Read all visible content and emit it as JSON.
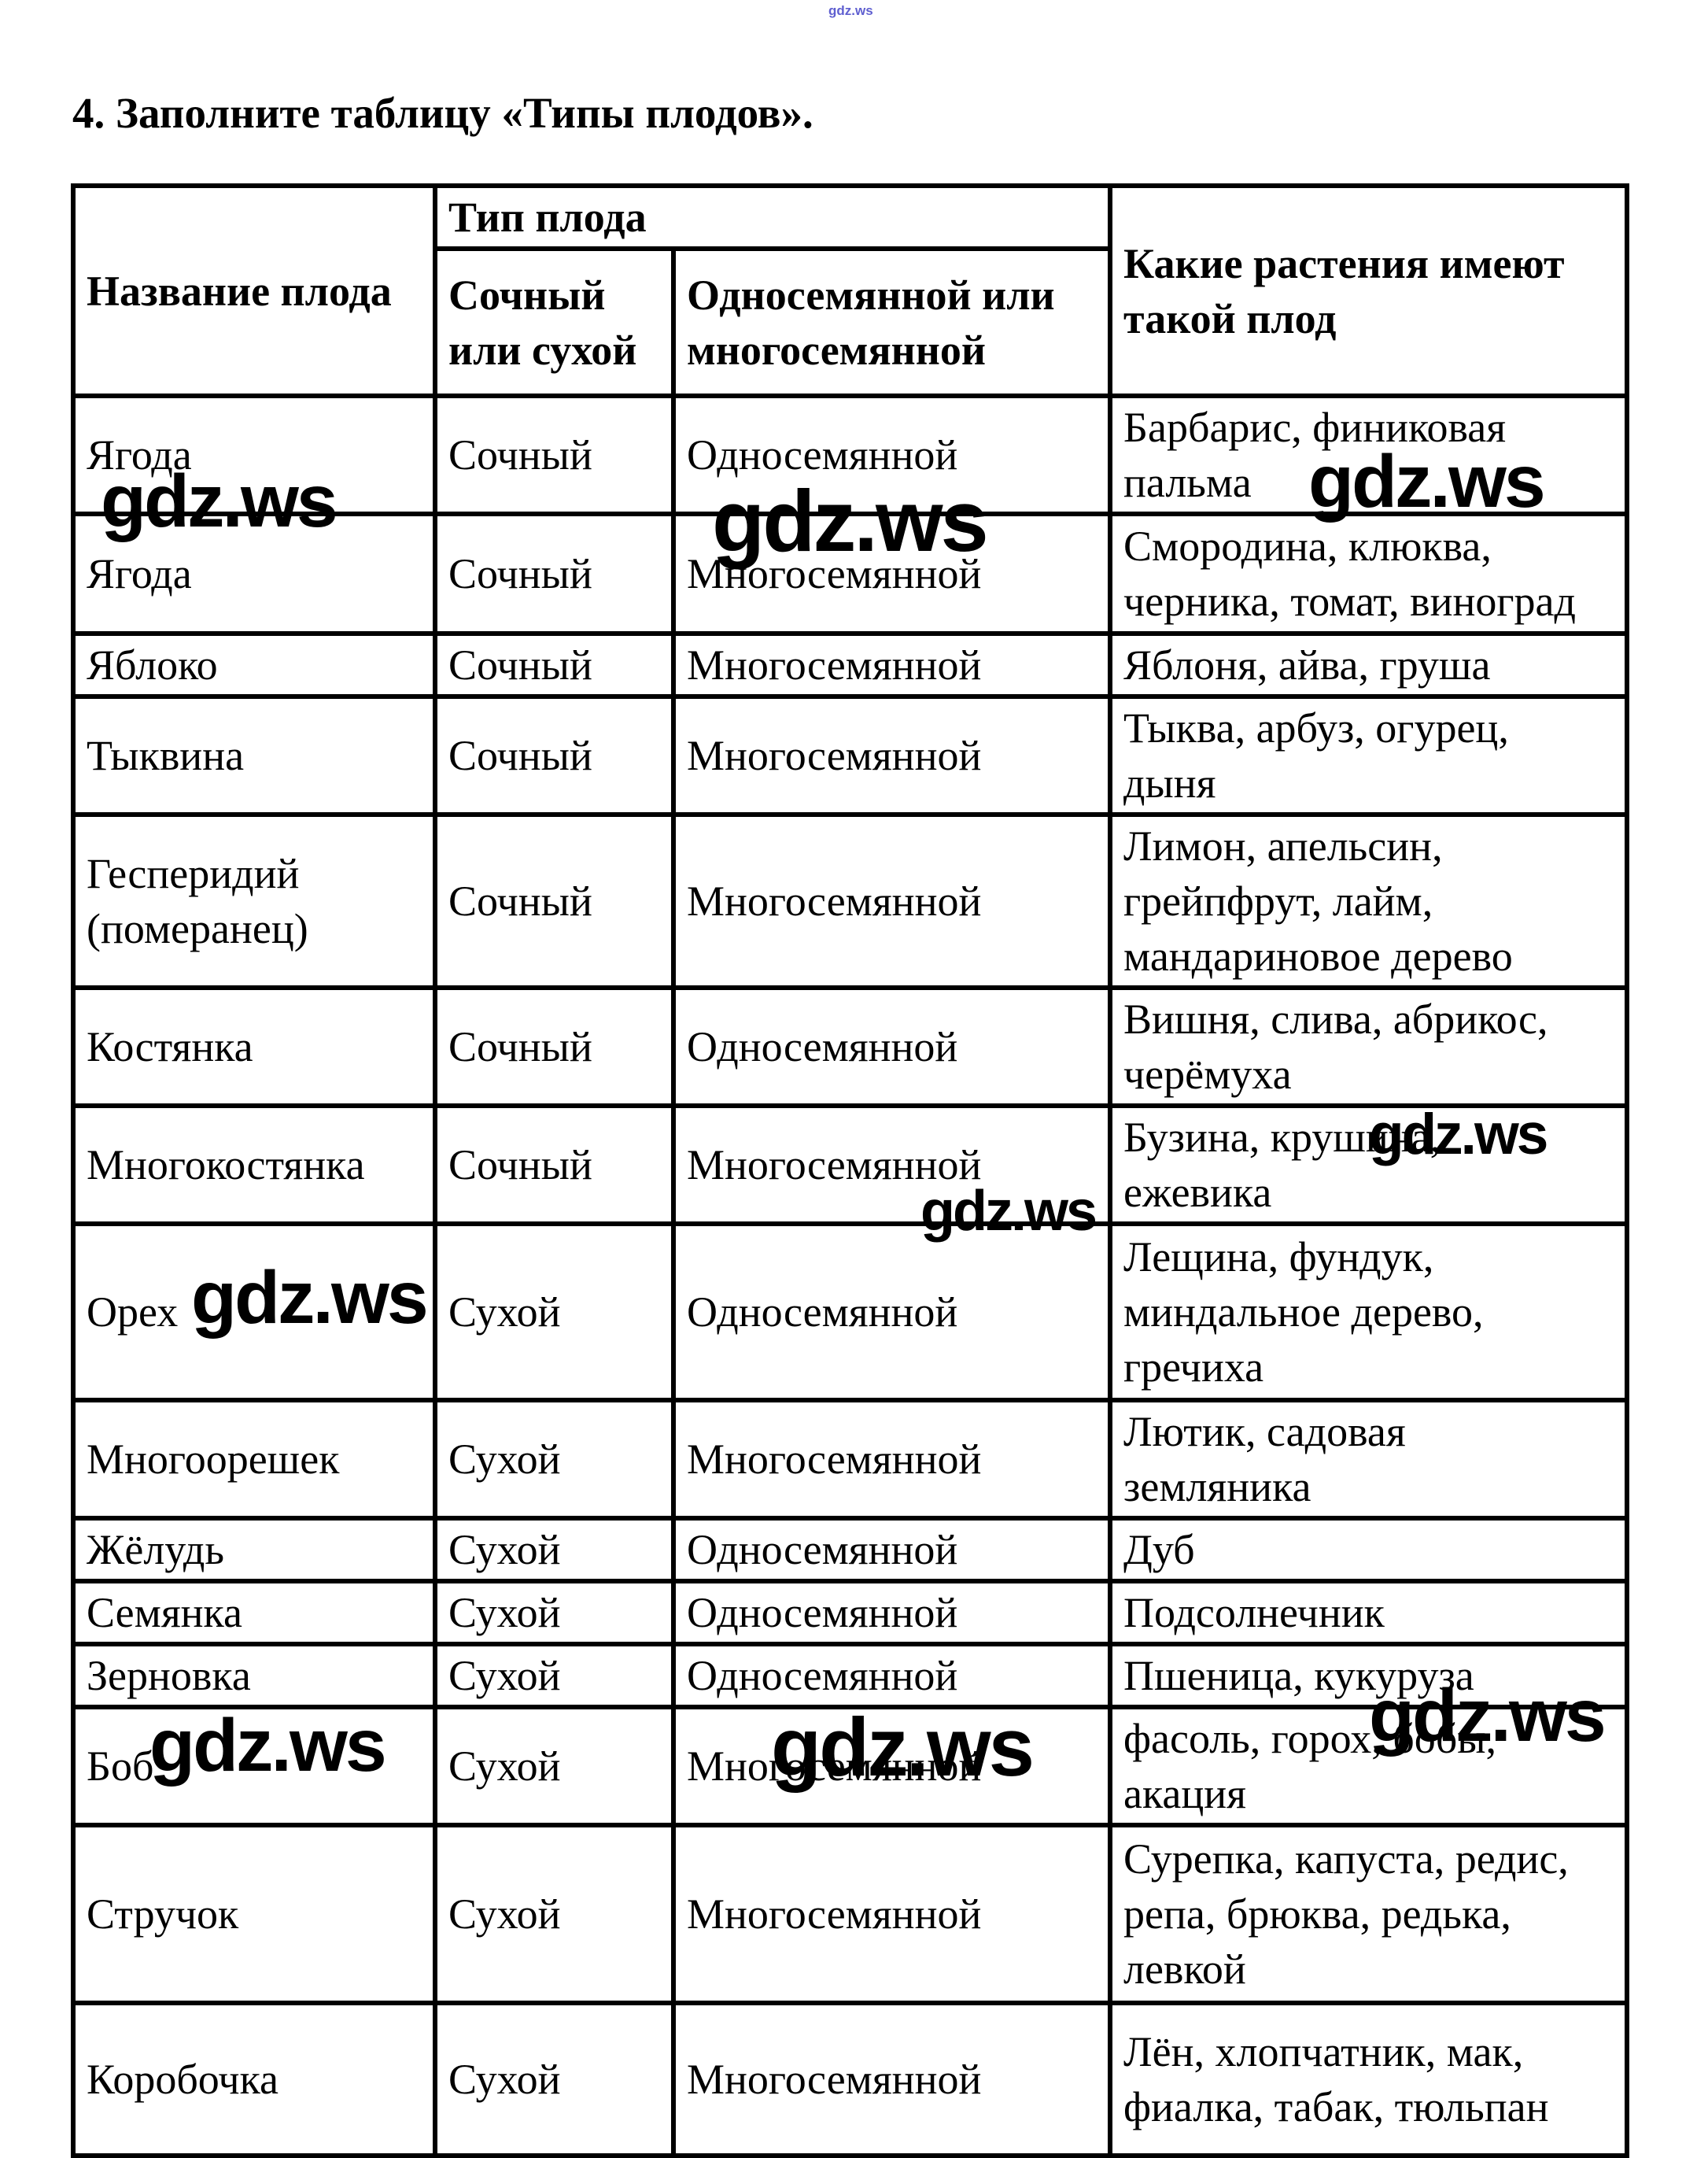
{
  "page": {
    "watermark_small": "gdz.ws",
    "watermark_large": "gdz.ws",
    "title": "4. Заполните таблицу «Типы плодов»."
  },
  "table": {
    "headers": {
      "col_name": "Название плода",
      "col_type_group": "Тип плода",
      "col_juicy": "Сочный\nили сухой",
      "col_seed": "Односемянной или\nмногосемянной",
      "col_plants": "Какие растения имеют\nтакой плод"
    },
    "rows": [
      {
        "name": "Ягода",
        "juicy": "Сочный",
        "seed": "Односемянной",
        "plants": "Барбарис, финиковая\nпальма"
      },
      {
        "name": "Ягода",
        "juicy": "Сочный",
        "seed": "Многосемянной",
        "plants": "Смородина, клюква,\nчерника, томат, виноград"
      },
      {
        "name": "Яблоко",
        "juicy": "Сочный",
        "seed": "Многосемянной",
        "plants": "Яблоня, айва, груша"
      },
      {
        "name": "Тыквина",
        "juicy": "Сочный",
        "seed": "Многосемянной",
        "plants": "Тыква, арбуз, огурец,\nдыня"
      },
      {
        "name": "Гесперидий\n(померанец)",
        "juicy": "Сочный",
        "seed": "Многосемянной",
        "plants": "Лимон, апельсин,\nгрейпфрут, лайм,\nмандариновое дерево"
      },
      {
        "name": "Костянка",
        "juicy": "Сочный",
        "seed": "Односемянной",
        "plants": "Вишня, слива, абрикос,\nчерёмуха"
      },
      {
        "name": "Многокостянка",
        "juicy": "Сочный",
        "seed": "Многосемянной",
        "plants": "Бузина, крушина,\nежевика"
      },
      {
        "name": "Орех",
        "juicy": "Сухой",
        "seed": "Односемянной",
        "plants": "Лещина, фундук,\nминдальное дерево,\nгречиха"
      },
      {
        "name": "Многоорешек",
        "juicy": "Сухой",
        "seed": "Многосемянной",
        "plants": "Лютик, садовая\nземляника"
      },
      {
        "name": "Жёлудь",
        "juicy": "Сухой",
        "seed": "Односемянной",
        "plants": "Дуб"
      },
      {
        "name": "Семянка",
        "juicy": "Сухой",
        "seed": "Односемянной",
        "plants": "Подсолнечник"
      },
      {
        "name": "Зерновка",
        "juicy": "Сухой",
        "seed": "Односемянной",
        "plants": "Пшеница, кукуруза"
      },
      {
        "name": "Боб",
        "juicy": "Сухой",
        "seed": "Многосемянной",
        "plants": "фасоль, горох, бобы,\nакация"
      },
      {
        "name": "Стручок",
        "juicy": "Сухой",
        "seed": "Многосемянной",
        "plants": "Сурепка, капуста, редис,\nрепа, брюква, редька,\nлевкой"
      },
      {
        "name": "Коробочка",
        "juicy": "Сухой",
        "seed": "Многосемянной",
        "plants": "Лён, хлопчатник, мак,\nфиалка, табак, тюльпан"
      }
    ]
  }
}
